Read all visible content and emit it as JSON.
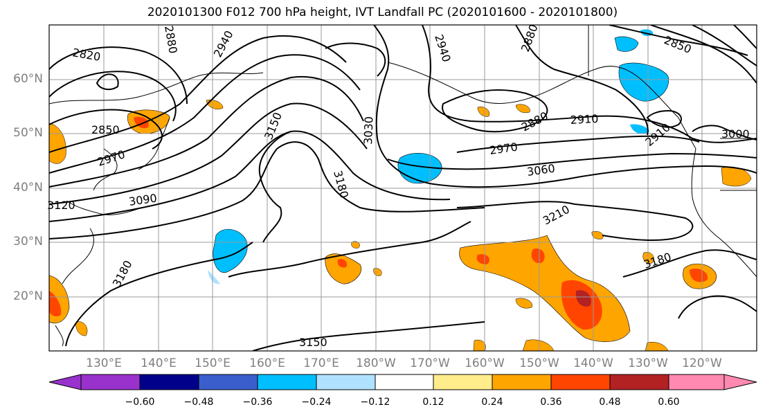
{
  "title": "2020101300 F012 700 hPa height, IVT Landfall PC (2020101600 - 2020101800)",
  "lat_labels": [
    "60°N",
    "50°N",
    "40°N",
    "30°N",
    "20°N"
  ],
  "lon_labels": [
    "130°E",
    "140°E",
    "150°E",
    "160°E",
    "170°E",
    "180°W",
    "170°W",
    "160°W",
    "150°W",
    "140°W",
    "130°W",
    "120°W"
  ],
  "contour_labels": [
    "2820",
    "2880",
    "2940",
    "2940",
    "2880",
    "2850",
    "2850",
    "2970",
    "3150",
    "3030",
    "2910",
    "2880",
    "2970",
    "3060",
    "3180",
    "3090",
    "3120",
    "3000",
    "2910",
    "3210",
    "3180",
    "3180",
    "3150"
  ],
  "colorbar": {
    "ticks": [
      "−0.60",
      "−0.48",
      "−0.36",
      "−0.24",
      "−0.12",
      "0.12",
      "0.24",
      "0.36",
      "0.48",
      "0.60"
    ],
    "colors": [
      "#9932cc",
      "#00008b",
      "#3a5fcd",
      "#00bfff",
      "#b0e2ff",
      "#ffffff",
      "#ffec8b",
      "#ffa500",
      "#ff4500",
      "#b22222",
      "#ff89b0"
    ]
  }
}
